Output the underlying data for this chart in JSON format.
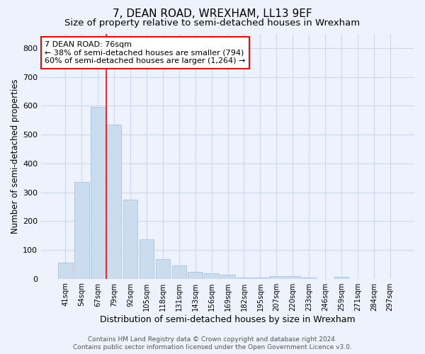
{
  "title": "7, DEAN ROAD, WREXHAM, LL13 9EF",
  "subtitle": "Size of property relative to semi-detached houses in Wrexham",
  "xlabel": "Distribution of semi-detached houses by size in Wrexham",
  "ylabel": "Number of semi-detached properties",
  "bar_labels": [
    "41sqm",
    "54sqm",
    "67sqm",
    "79sqm",
    "92sqm",
    "105sqm",
    "118sqm",
    "131sqm",
    "143sqm",
    "156sqm",
    "169sqm",
    "182sqm",
    "195sqm",
    "207sqm",
    "220sqm",
    "233sqm",
    "246sqm",
    "259sqm",
    "271sqm",
    "284sqm",
    "297sqm"
  ],
  "bar_values": [
    55,
    335,
    595,
    535,
    275,
    137,
    68,
    45,
    25,
    20,
    13,
    5,
    4,
    8,
    8,
    4,
    0,
    6,
    0,
    0,
    0
  ],
  "bar_color": "#ccdcef",
  "bar_edgecolor": "#a8c4de",
  "annotation_text": "7 DEAN ROAD: 76sqm\n← 38% of semi-detached houses are smaller (794)\n60% of semi-detached houses are larger (1,264) →",
  "annotation_box_color": "white",
  "annotation_box_edgecolor": "red",
  "vline_color": "red",
  "ylim": [
    0,
    850
  ],
  "yticks": [
    0,
    100,
    200,
    300,
    400,
    500,
    600,
    700,
    800
  ],
  "grid_color": "#cdd8ef",
  "background_color": "#eef2fc",
  "footer_line1": "Contains HM Land Registry data © Crown copyright and database right 2024.",
  "footer_line2": "Contains public sector information licensed under the Open Government Licence v3.0.",
  "title_fontsize": 11,
  "subtitle_fontsize": 9.5,
  "xlabel_fontsize": 9,
  "ylabel_fontsize": 8.5,
  "annotation_fontsize": 8
}
